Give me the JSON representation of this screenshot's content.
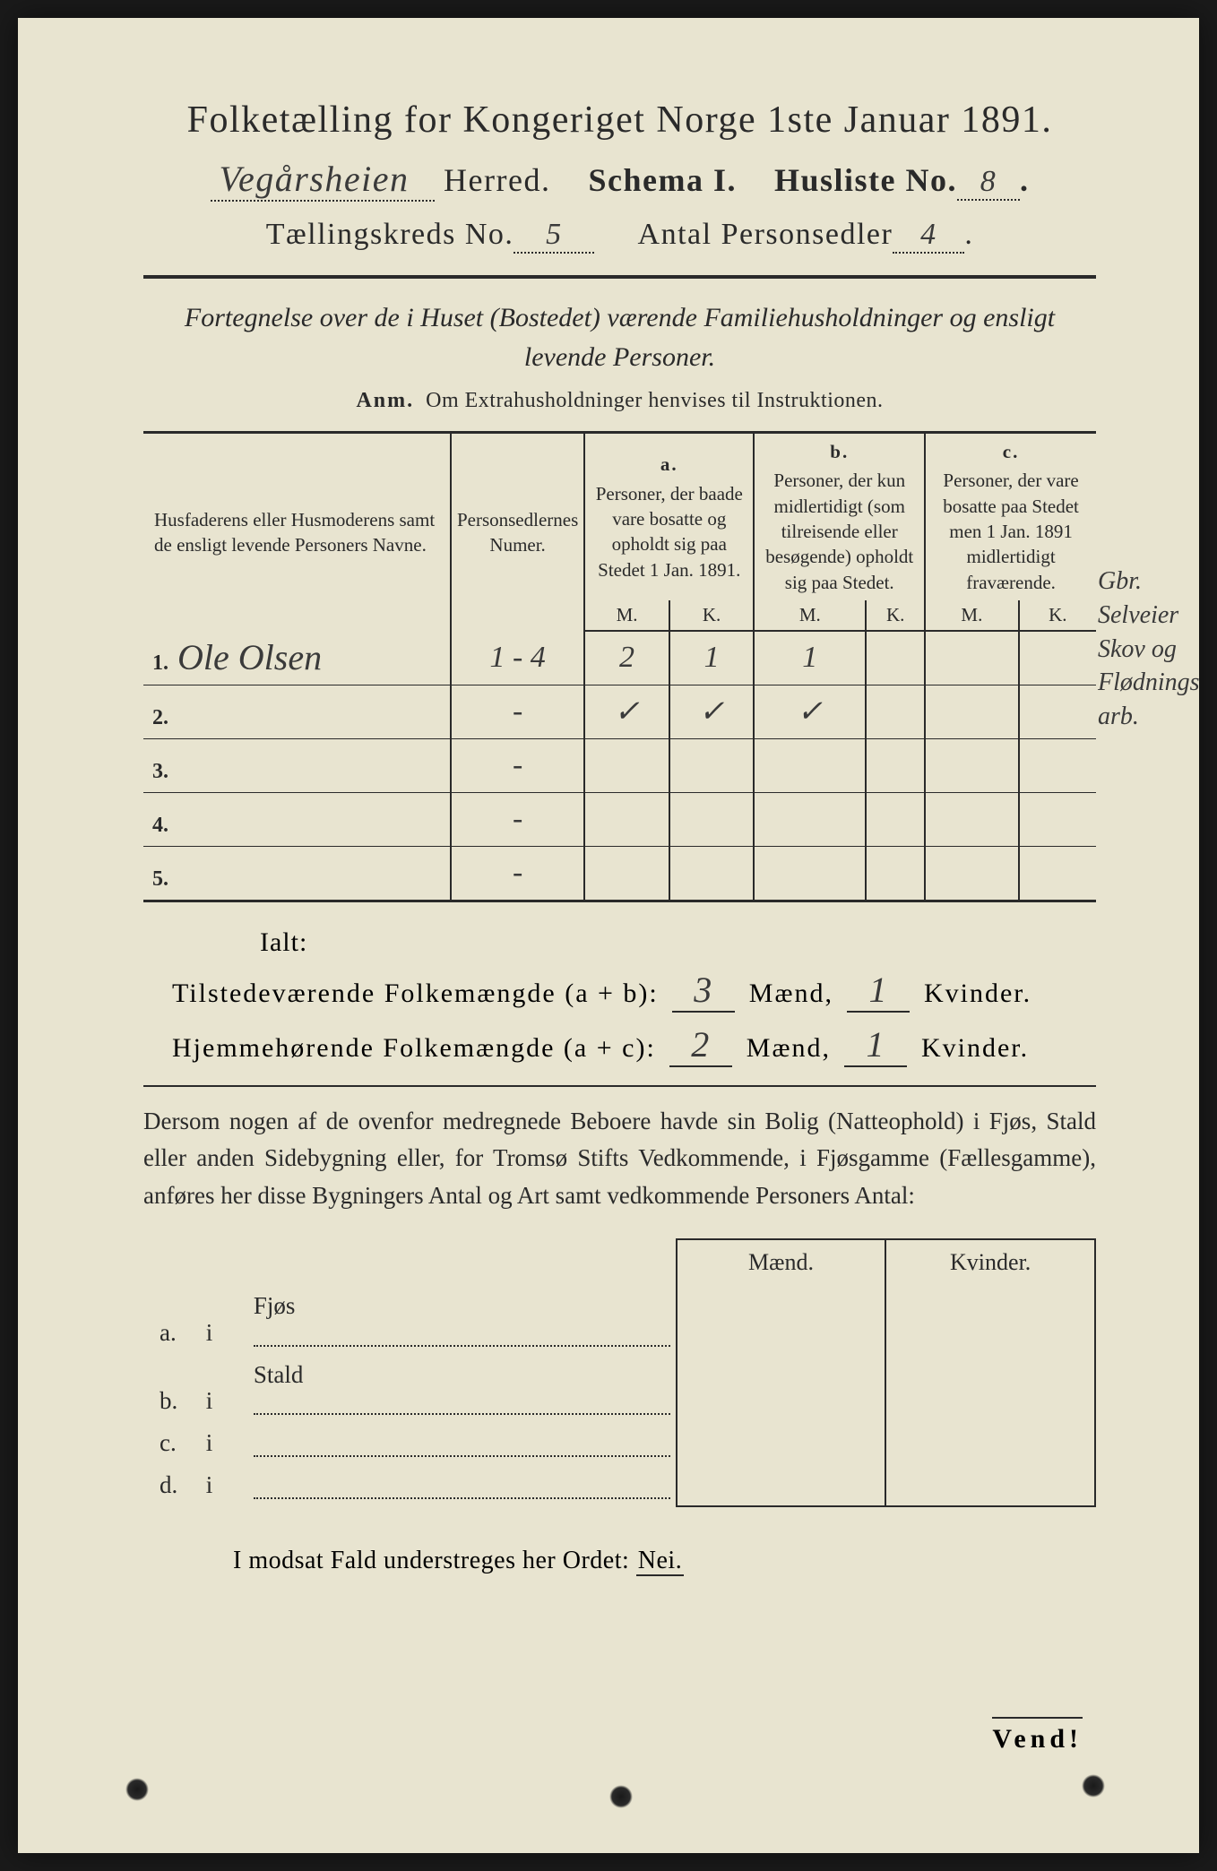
{
  "colors": {
    "paper": "#e8e4d0",
    "ink": "#2a2a2a",
    "handwriting": "#3a3a3a",
    "background": "#1a1a1a"
  },
  "header": {
    "title": "Folketælling for Kongeriget Norge 1ste Januar 1891.",
    "herred_value": "Vegårsheien",
    "herred_label": "Herred.",
    "schema_label": "Schema I.",
    "husliste_label": "Husliste No.",
    "husliste_value": "8",
    "kreds_label": "Tællingskreds No.",
    "kreds_value": "5",
    "personsedler_label": "Antal Personsedler",
    "personsedler_value": "4"
  },
  "subtitle": "Fortegnelse over de i Huset (Bostedet) værende Familiehusholdninger og ensligt levende Personer.",
  "anm_label": "Anm.",
  "anm_text": "Om Extrahusholdninger henvises til Instruktionen.",
  "table": {
    "col_names": "Husfaderens eller Husmoderens samt de ensligt levende Personers Navne.",
    "col_num": "Personsedlernes Numer.",
    "col_a_label": "a.",
    "col_a": "Personer, der baade vare bosatte og opholdt sig paa Stedet 1 Jan. 1891.",
    "col_b_label": "b.",
    "col_b": "Personer, der kun midlertidigt (som tilreisende eller besøgende) opholdt sig paa Stedet.",
    "col_c_label": "c.",
    "col_c": "Personer, der vare bosatte paa Stedet men 1 Jan. 1891 midlertidigt fraværende.",
    "mk_m": "M.",
    "mk_k": "K.",
    "rows": [
      {
        "n": "1.",
        "name": "Ole Olsen",
        "num": "1 - 4",
        "aM": "2",
        "aK": "1",
        "bM": "1",
        "bK": "",
        "cM": "",
        "cK": ""
      },
      {
        "n": "2.",
        "name": "",
        "num": "-",
        "aM": "✓",
        "aK": "✓",
        "bM": "✓",
        "bK": "",
        "cM": "",
        "cK": ""
      },
      {
        "n": "3.",
        "name": "",
        "num": "-",
        "aM": "",
        "aK": "",
        "bM": "",
        "bK": "",
        "cM": "",
        "cK": ""
      },
      {
        "n": "4.",
        "name": "",
        "num": "-",
        "aM": "",
        "aK": "",
        "bM": "",
        "bK": "",
        "cM": "",
        "cK": ""
      },
      {
        "n": "5.",
        "name": "",
        "num": "-",
        "aM": "",
        "aK": "",
        "bM": "",
        "bK": "",
        "cM": "",
        "cK": ""
      }
    ]
  },
  "margin_note": "Gbr. Selveier Skov og Flødnings arb.",
  "totals": {
    "ialt": "Ialt:",
    "line1_label": "Tilstedeværende Folkemængde (a + b):",
    "line1_m": "3",
    "line1_k": "1",
    "line2_label": "Hjemmehørende Folkemængde (a + c):",
    "line2_m": "2",
    "line2_k": "1",
    "maend": "Mænd,",
    "kvinder": "Kvinder."
  },
  "paragraph": "Dersom nogen af de ovenfor medregnede Beboere havde sin Bolig (Natteophold) i Fjøs, Stald eller anden Sidebygning eller, for Tromsø Stifts Vedkommende, i Fjøsgamme (Fællesgamme), anføres her disse Bygningers Antal og Art samt vedkommende Personers Antal:",
  "sb": {
    "head_m": "Mænd.",
    "head_k": "Kvinder.",
    "rows": [
      {
        "lab": "a.",
        "i": "i",
        "type": "Fjøs"
      },
      {
        "lab": "b.",
        "i": "i",
        "type": "Stald"
      },
      {
        "lab": "c.",
        "i": "i",
        "type": ""
      },
      {
        "lab": "d.",
        "i": "i",
        "type": ""
      }
    ]
  },
  "nei_line_pre": "I modsat Fald understreges her Ordet: ",
  "nei_word": "Nei.",
  "vend": "Vend!"
}
